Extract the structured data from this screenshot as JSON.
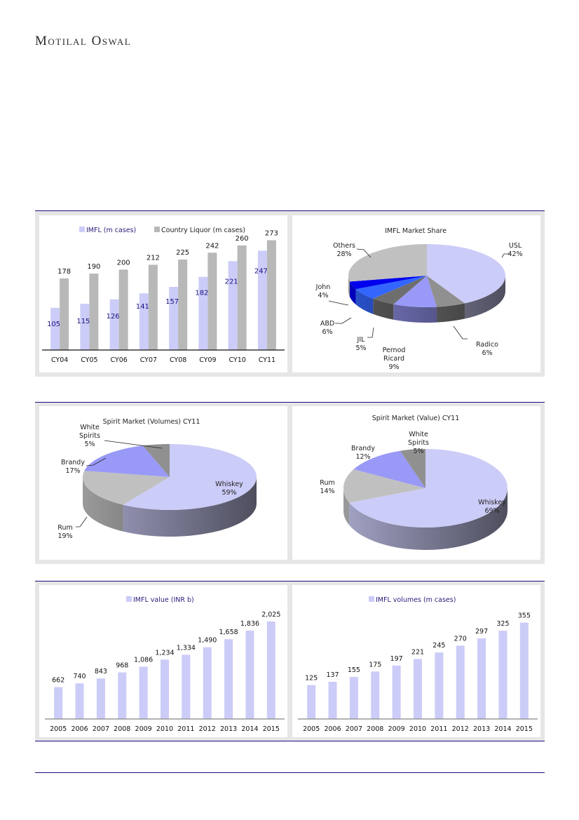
{
  "header": {
    "brand": "Motilal Oswal"
  },
  "colors": {
    "rule": "#1a0f80",
    "panel_bg": "#e6e6e6",
    "imfl_bar": "#ccccf8",
    "country_bar": "#b8b8b8",
    "imfl_label": "#1a0f80"
  },
  "chart_data": [
    {
      "type": "bar",
      "title": "",
      "categories": [
        "CY04",
        "CY05",
        "CY06",
        "CY07",
        "CY08",
        "CY09",
        "CY10",
        "CY11"
      ],
      "series": [
        {
          "name": "IMFL (m cases)",
          "values": [
            105,
            115,
            126,
            141,
            157,
            182,
            221,
            247
          ],
          "color": "#ccccf8"
        },
        {
          "name": "Country Liquor (m cases)",
          "values": [
            178,
            190,
            200,
            212,
            225,
            242,
            260,
            273
          ],
          "color": "#b8b8b8"
        }
      ],
      "legend": "top",
      "ylim": [
        0,
        300
      ],
      "grid": false
    },
    {
      "type": "pie",
      "title": "IMFL Market Share",
      "slices": [
        {
          "label": "USL",
          "value": 42,
          "text": "42%",
          "color": "#ccccf8"
        },
        {
          "label": "Radico",
          "value": 6,
          "text": "6%",
          "color": "#909090"
        },
        {
          "label": "Pernod Ricard",
          "value": 9,
          "text": "9%",
          "color": "#9999f8"
        },
        {
          "label": "JIL",
          "value": 5,
          "text": "5%",
          "color": "#6e6e6e"
        },
        {
          "label": "ABD",
          "value": 6,
          "text": "6%",
          "color": "#3366ff"
        },
        {
          "label": "John",
          "value": 4,
          "text": "4%",
          "color": "#0000ee"
        },
        {
          "label": "Others",
          "value": 28,
          "text": "28%",
          "color": "#c0c0c0"
        }
      ]
    },
    {
      "type": "pie",
      "title": "Spirit Market (Volumes) CY11",
      "slices": [
        {
          "label": "Whiskey",
          "value": 59,
          "text": "59%",
          "color": "#ccccf8"
        },
        {
          "label": "Rum",
          "value": 19,
          "text": "19%",
          "color": "#c0c0c0"
        },
        {
          "label": "Brandy",
          "value": 17,
          "text": "17%",
          "color": "#9999f8"
        },
        {
          "label": "White Spirits",
          "value": 5,
          "text": "5%",
          "color": "#909090"
        }
      ]
    },
    {
      "type": "pie",
      "title": "Spirit Market (Value) CY11",
      "slices": [
        {
          "label": "Whiskey",
          "value": 69,
          "text": "69%",
          "color": "#ccccf8"
        },
        {
          "label": "Rum",
          "value": 14,
          "text": "14%",
          "color": "#c0c0c0"
        },
        {
          "label": "Brandy",
          "value": 12,
          "text": "12%",
          "color": "#9999f8"
        },
        {
          "label": "White Spirits",
          "value": 5,
          "text": "5%",
          "color": "#909090"
        }
      ]
    },
    {
      "type": "bar",
      "title": "",
      "categories": [
        "2005",
        "2006",
        "2007",
        "2008",
        "2009",
        "2010",
        "2011",
        "2012",
        "2013",
        "2014",
        "2015"
      ],
      "series": [
        {
          "name": "IMFL value (INR b)",
          "values": [
            662,
            740,
            843,
            968,
            1086,
            1234,
            1334,
            1490,
            1658,
            1836,
            2025
          ],
          "labels": [
            "662",
            "740",
            "843",
            "968",
            "1,086",
            "1,234",
            "1,334",
            "1,490",
            "1,658",
            "1,836",
            "2,025"
          ],
          "color": "#ccccf8"
        }
      ],
      "legend": "top",
      "ylim": [
        0,
        2200
      ],
      "grid": false
    },
    {
      "type": "bar",
      "title": "",
      "categories": [
        "2005",
        "2006",
        "2007",
        "2008",
        "2009",
        "2010",
        "2011",
        "2012",
        "2013",
        "2014",
        "2015"
      ],
      "series": [
        {
          "name": "IMFL volumes (m cases)",
          "values": [
            125,
            137,
            155,
            175,
            197,
            221,
            245,
            270,
            297,
            325,
            355
          ],
          "labels": [
            "125",
            "137",
            "155",
            "175",
            "197",
            "221",
            "245",
            "270",
            "297",
            "325",
            "355"
          ],
          "color": "#ccccf8"
        }
      ],
      "legend": "top",
      "ylim": [
        0,
        385
      ],
      "grid": false
    }
  ]
}
